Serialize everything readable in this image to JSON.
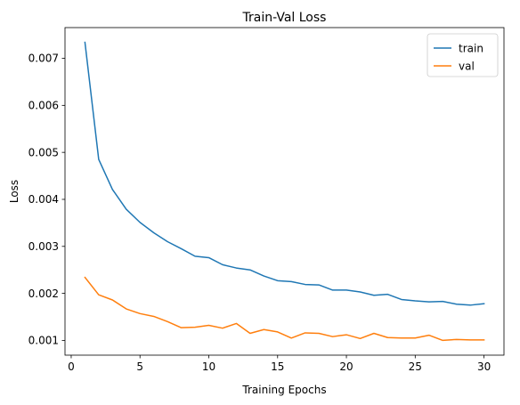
{
  "chart_data": {
    "type": "line",
    "title": "Train-Val Loss",
    "xlabel": "Training Epochs",
    "ylabel": "Loss",
    "xlim": [
      -0.45,
      31.45
    ],
    "ylim": [
      0.000686,
      0.007654
    ],
    "xticks": [
      0,
      5,
      10,
      15,
      20,
      25,
      30
    ],
    "xtick_labels": [
      "0",
      "5",
      "10",
      "15",
      "20",
      "25",
      "30"
    ],
    "yticks": [
      0.001,
      0.002,
      0.003,
      0.004,
      0.005,
      0.006,
      0.007
    ],
    "ytick_labels": [
      "0.001",
      "0.002",
      "0.003",
      "0.004",
      "0.005",
      "0.006",
      "0.007"
    ],
    "grid": false,
    "legend_position": "top-right",
    "x": [
      1,
      2,
      3,
      4,
      5,
      6,
      7,
      8,
      9,
      10,
      11,
      12,
      13,
      14,
      15,
      16,
      17,
      18,
      19,
      20,
      21,
      22,
      23,
      24,
      25,
      26,
      27,
      28,
      29,
      30
    ],
    "series": [
      {
        "name": "train",
        "color": "#1f77b4",
        "values": [
          0.00734,
          0.00485,
          0.00421,
          0.00379,
          0.00351,
          0.00329,
          0.0031,
          0.00295,
          0.00279,
          0.00276,
          0.00261,
          0.00254,
          0.0025,
          0.00237,
          0.00227,
          0.00225,
          0.00219,
          0.00218,
          0.00207,
          0.00207,
          0.00203,
          0.00196,
          0.00198,
          0.00187,
          0.00184,
          0.00182,
          0.00183,
          0.00177,
          0.00175,
          0.00178
        ]
      },
      {
        "name": "val",
        "color": "#ff7f0e",
        "values": [
          0.00234,
          0.00197,
          0.00186,
          0.00167,
          0.00157,
          0.00151,
          0.0014,
          0.00127,
          0.00128,
          0.00132,
          0.00126,
          0.00136,
          0.00115,
          0.00123,
          0.00118,
          0.00105,
          0.00116,
          0.00115,
          0.00108,
          0.00112,
          0.00104,
          0.00115,
          0.00106,
          0.00105,
          0.00105,
          0.00111,
          0.001,
          0.00102,
          0.00101,
          0.00101
        ]
      }
    ]
  }
}
